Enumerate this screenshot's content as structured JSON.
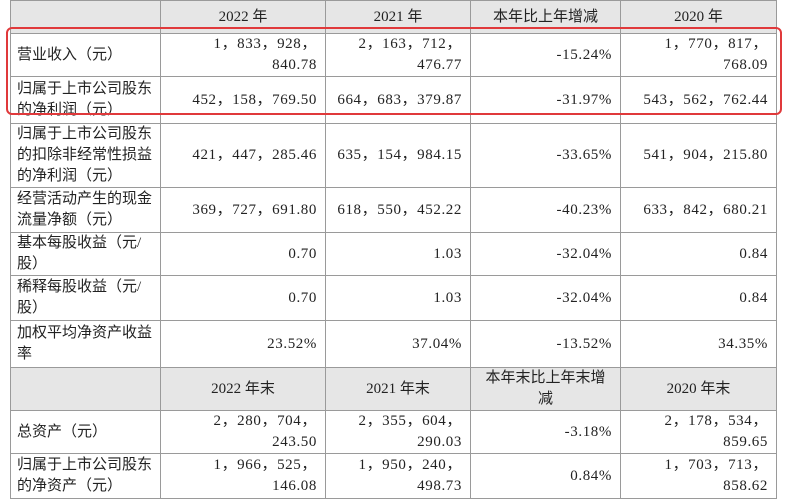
{
  "table": {
    "header": [
      "2022 年",
      "2021 年",
      "本年比上年增减",
      "2020 年"
    ],
    "rows": [
      [
        "营业收入（元）",
        "1，833，928，840.78",
        "2，163，712，476.77",
        "-15.24%",
        "1，770，817，768.09"
      ],
      [
        "归属于上市公司股东的净利润（元）",
        "452，158，769.50",
        "664，683，379.87",
        "-31.97%",
        "543，562，762.44"
      ],
      [
        "归属于上市公司股东的扣除非经常性损益的净利润（元）",
        "421，447，285.46",
        "635，154，984.15",
        "-33.65%",
        "541，904，215.80"
      ],
      [
        "经营活动产生的现金流量净额（元）",
        "369，727，691.80",
        "618，550，452.22",
        "-40.23%",
        "633，842，680.21"
      ],
      [
        "基本每股收益（元/股）",
        "0.70",
        "1.03",
        "-32.04%",
        "0.84"
      ],
      [
        "稀释每股收益（元/股）",
        "0.70",
        "1.03",
        "-32.04%",
        "0.84"
      ],
      [
        "加权平均净资产收益率",
        "23.52%",
        "37.04%",
        "-13.52%",
        "34.35%"
      ]
    ],
    "header2": [
      "2022 年末",
      "2021 年末",
      "本年末比上年末增减",
      "2020 年末"
    ],
    "rows2": [
      [
        "总资产（元）",
        "2，280，704，243.50",
        "2，355，604，290.03",
        "-3.18%",
        "2，178，534，859.65"
      ],
      [
        "归属于上市公司股东的净资产（元）",
        "1，966，525，146.08",
        "1，950，240，498.73",
        "0.84%",
        "1，703，713，858.62"
      ]
    ]
  }
}
